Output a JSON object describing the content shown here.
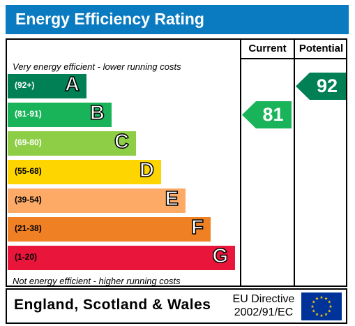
{
  "title": "Energy Efficiency Rating",
  "columns": {
    "current": "Current",
    "potential": "Potential"
  },
  "notes": {
    "top": "Very energy efficient - lower running costs",
    "bottom": "Not energy efficient - higher running costs"
  },
  "chart_data": {
    "type": "bar",
    "bands": [
      {
        "letter": "A",
        "range": "(92+)",
        "color": "#008054"
      },
      {
        "letter": "B",
        "range": "(81-91)",
        "color": "#19b459"
      },
      {
        "letter": "C",
        "range": "(69-80)",
        "color": "#8dce46"
      },
      {
        "letter": "D",
        "range": "(55-68)",
        "color": "#ffd500"
      },
      {
        "letter": "E",
        "range": "(39-54)",
        "color": "#fcaa65"
      },
      {
        "letter": "F",
        "range": "(21-38)",
        "color": "#ef8023"
      },
      {
        "letter": "G",
        "range": "(1-20)",
        "color": "#e9153b"
      }
    ],
    "current": {
      "value": "81",
      "band": "B",
      "color": "#19b459"
    },
    "potential": {
      "value": "92",
      "band": "A",
      "color": "#008054"
    }
  },
  "footer": {
    "region": "England, Scotland & Wales",
    "directive_line1": "EU Directive",
    "directive_line2": "2002/91/EC"
  },
  "icons": {
    "flag": "eu-flag-icon"
  }
}
